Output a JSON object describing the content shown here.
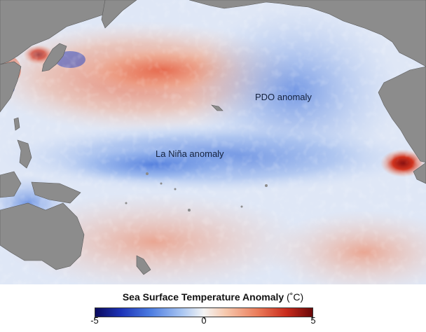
{
  "map": {
    "labels": {
      "pdo": "PDO anomaly",
      "lanina": "La Niña anomaly"
    }
  },
  "legend": {
    "title": "Sea Surface Temperature Anomaly",
    "unit": "(˚C)",
    "ticks": [
      "-5",
      "0",
      "5"
    ],
    "range": [
      -5,
      5
    ]
  },
  "colors": {
    "land": "#888888",
    "cold_extreme": "#0a0a5e",
    "neutral": "#f4f4f4",
    "warm_extreme": "#6a0808"
  }
}
